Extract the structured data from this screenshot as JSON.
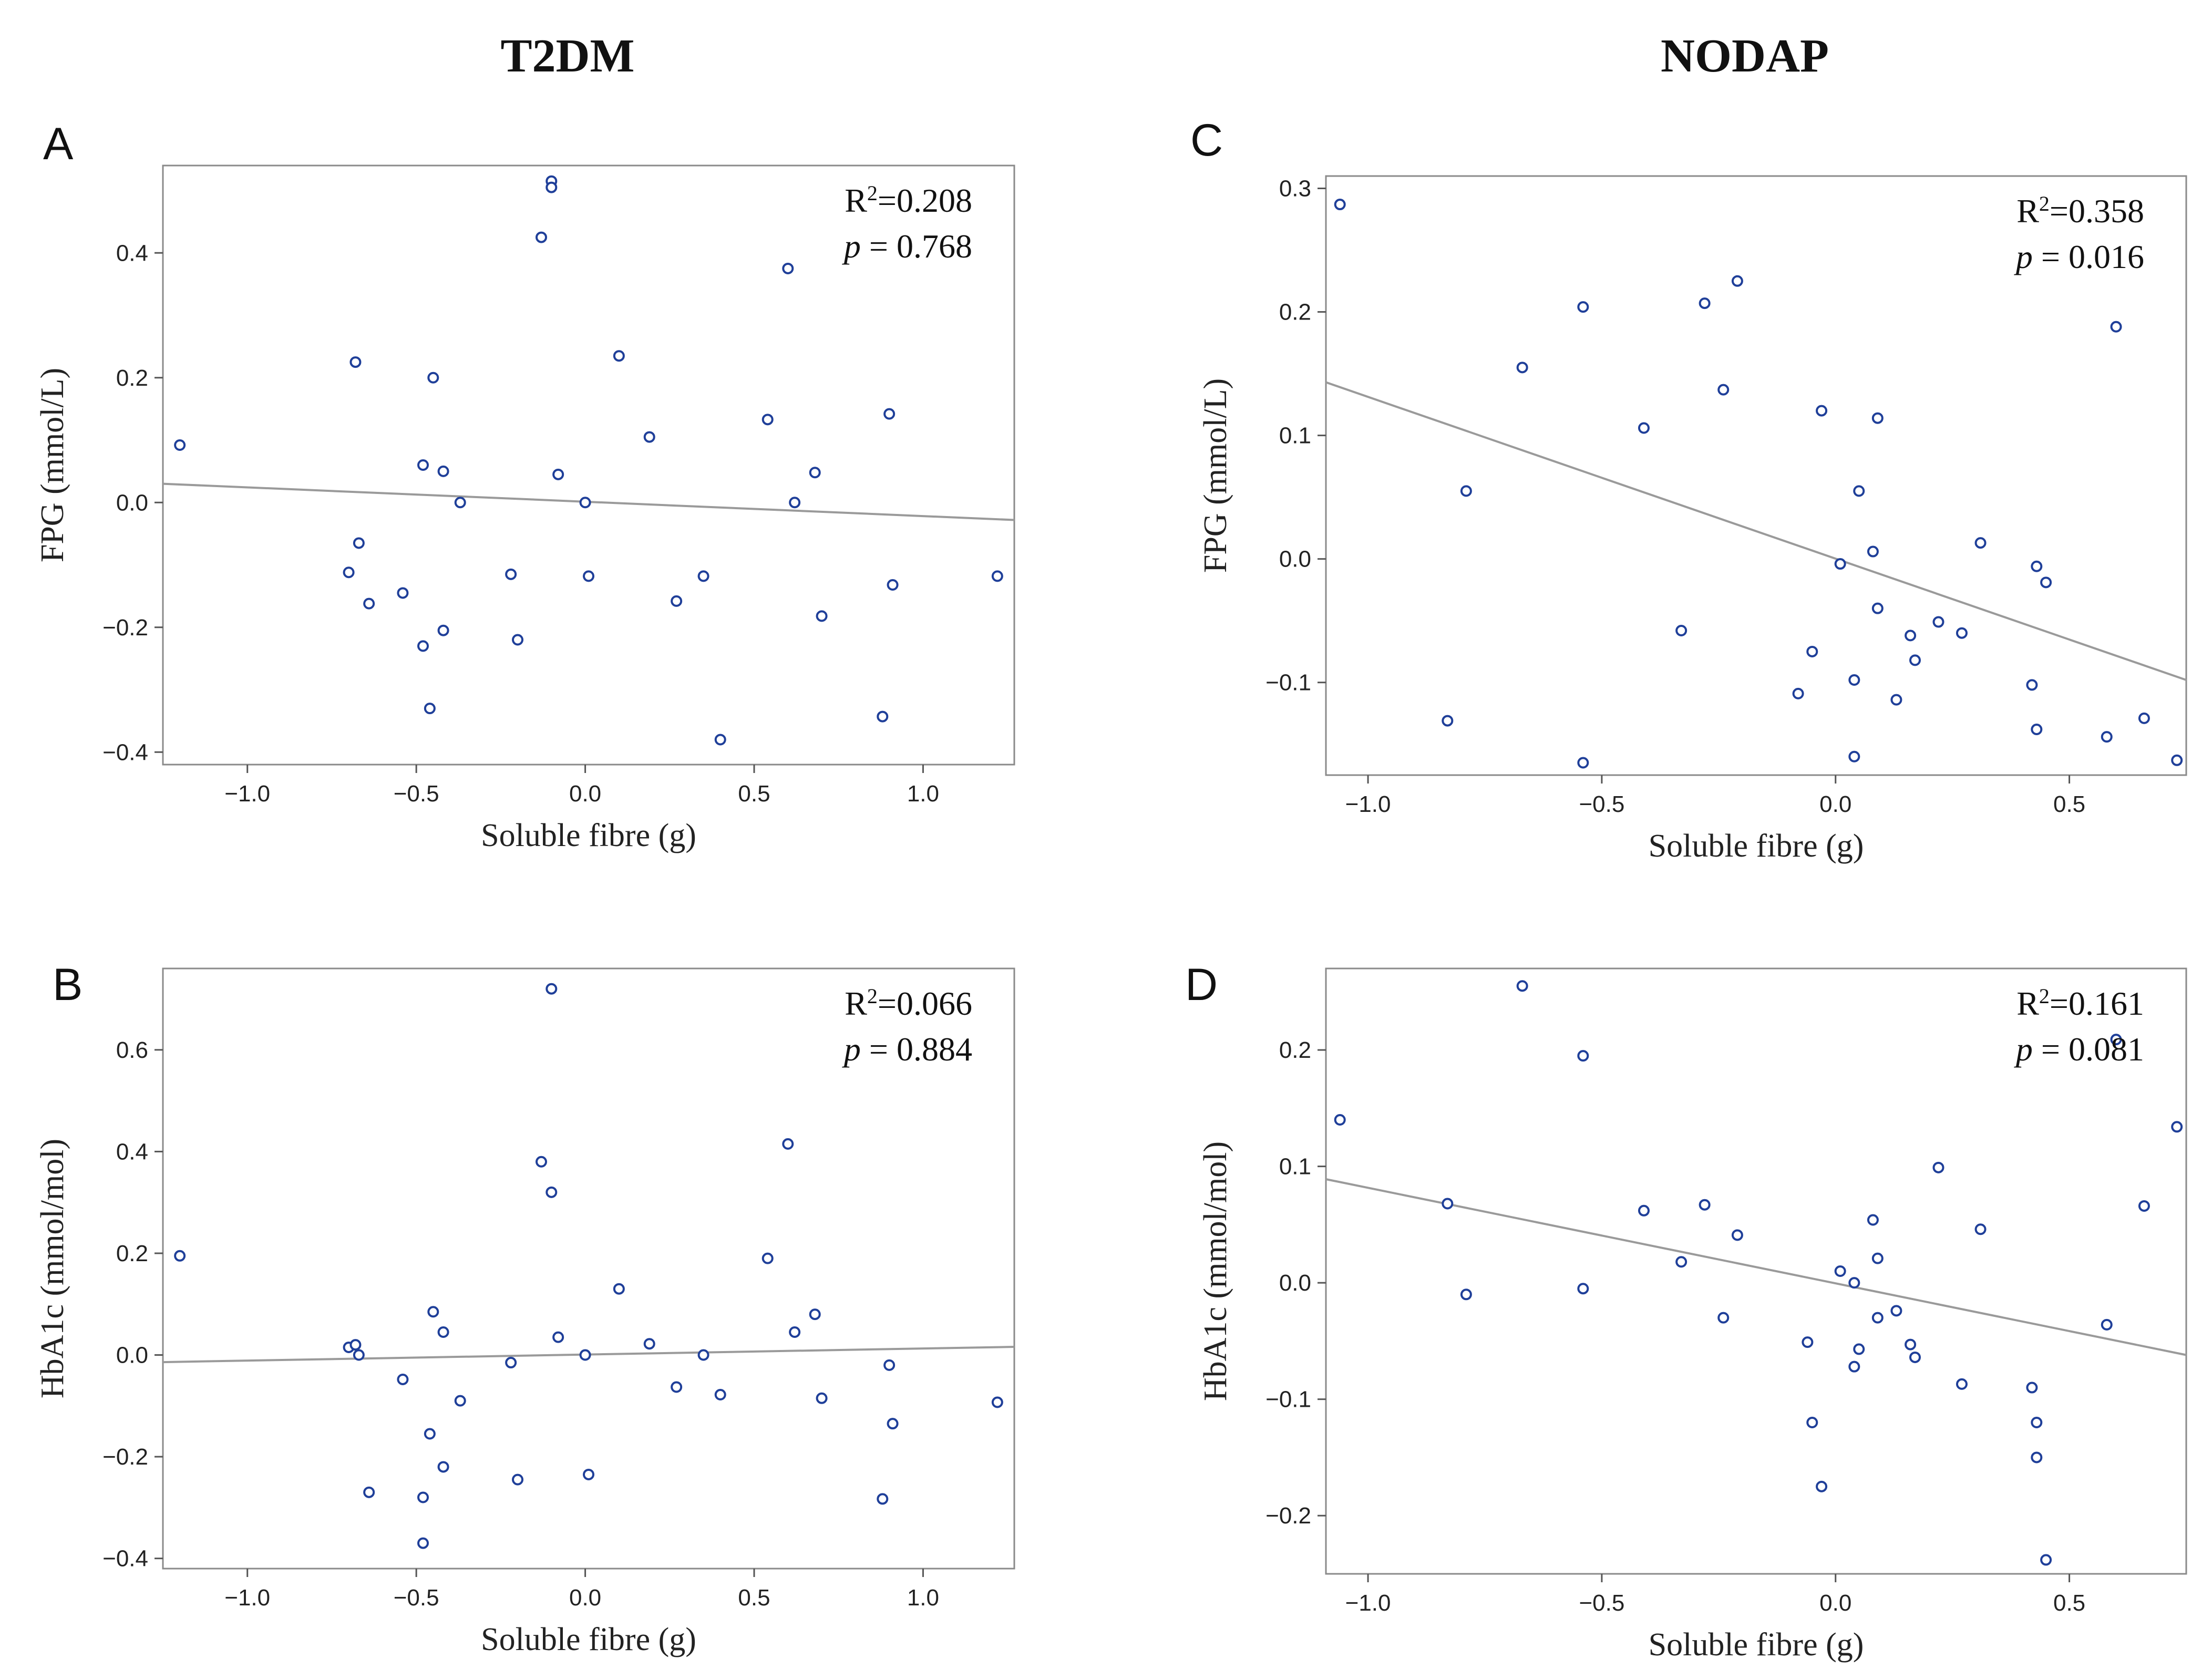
{
  "column_titles": [
    "T2DM",
    "NODAP"
  ],
  "chart_data": [
    {
      "panel": "A",
      "type": "scatter",
      "xlabel": "Soluble fibre (g)",
      "ylabel": "FPG (mmol/L)",
      "xlim": [
        -1.25,
        1.27
      ],
      "ylim": [
        -0.42,
        0.54
      ],
      "xticks": [
        -1.0,
        -0.5,
        0.0,
        0.5,
        1.0
      ],
      "yticks": [
        -0.4,
        -0.2,
        0.0,
        0.2,
        0.4
      ],
      "r2_label": "R",
      "r2_sup": "2",
      "r2_value": "=0.208",
      "p_label": "p",
      "p_value": " = 0.768",
      "fit_line": {
        "x": [
          -1.25,
          1.27
        ],
        "y": [
          0.03,
          -0.028
        ]
      },
      "points": {
        "x": [
          -1.2,
          -0.7,
          -0.68,
          -0.67,
          -0.64,
          -0.54,
          -0.48,
          -0.48,
          -0.46,
          -0.45,
          -0.42,
          -0.42,
          -0.37,
          -0.22,
          -0.2,
          -0.13,
          -0.1,
          -0.1,
          -0.08,
          0.0,
          0.01,
          0.1,
          0.19,
          0.27,
          0.35,
          0.4,
          0.54,
          0.6,
          0.62,
          0.68,
          0.7,
          0.88,
          0.9,
          0.91,
          1.22
        ],
        "y": [
          0.092,
          -0.112,
          0.225,
          -0.065,
          -0.162,
          -0.145,
          0.06,
          -0.23,
          -0.33,
          0.2,
          0.05,
          -0.205,
          0.0,
          -0.115,
          -0.22,
          0.425,
          0.515,
          0.505,
          0.045,
          0.0,
          -0.118,
          0.235,
          0.105,
          -0.158,
          -0.118,
          -0.38,
          0.133,
          0.375,
          0.0,
          0.048,
          -0.182,
          -0.343,
          0.142,
          -0.132,
          -0.118
        ]
      }
    },
    {
      "panel": "B",
      "type": "scatter",
      "xlabel": "Soluble fibre (g)",
      "ylabel": "HbA1c (mmol/mol)",
      "xlim": [
        -1.25,
        1.27
      ],
      "ylim": [
        -0.42,
        0.76
      ],
      "xticks": [
        -1.0,
        -0.5,
        0.0,
        0.5,
        1.0
      ],
      "yticks": [
        -0.4,
        -0.2,
        0.0,
        0.2,
        0.4,
        0.6
      ],
      "r2_label": "R",
      "r2_sup": "2",
      "r2_value": "=0.066",
      "p_label": "p",
      "p_value": " = 0.884",
      "fit_line": {
        "x": [
          -1.25,
          1.27
        ],
        "y": [
          -0.014,
          0.016
        ]
      },
      "points": {
        "x": [
          -1.2,
          -0.7,
          -0.68,
          -0.67,
          -0.64,
          -0.54,
          -0.48,
          -0.48,
          -0.46,
          -0.45,
          -0.42,
          -0.42,
          -0.37,
          -0.22,
          -0.2,
          -0.13,
          -0.1,
          -0.1,
          -0.08,
          0.0,
          0.01,
          0.1,
          0.19,
          0.27,
          0.35,
          0.4,
          0.54,
          0.6,
          0.62,
          0.68,
          0.7,
          0.88,
          0.9,
          0.91,
          1.22
        ],
        "y": [
          0.195,
          0.015,
          0.02,
          0.0,
          -0.27,
          -0.048,
          -0.28,
          -0.37,
          -0.155,
          0.085,
          0.045,
          -0.22,
          -0.09,
          -0.015,
          -0.245,
          0.38,
          0.72,
          0.32,
          0.035,
          0.0,
          -0.235,
          0.13,
          0.022,
          -0.063,
          0.0,
          -0.078,
          0.19,
          0.415,
          0.045,
          0.08,
          -0.085,
          -0.283,
          -0.02,
          -0.135,
          -0.093
        ]
      }
    },
    {
      "panel": "C",
      "type": "scatter",
      "xlabel": "Soluble fibre (g)",
      "ylabel": "FPG (mmol/L)",
      "xlim": [
        -1.09,
        0.75
      ],
      "ylim": [
        -0.175,
        0.31
      ],
      "xticks": [
        -1.0,
        -0.5,
        0.0,
        0.5
      ],
      "yticks": [
        -0.1,
        0.0,
        0.1,
        0.2,
        0.3
      ],
      "r2_label": "R",
      "r2_sup": "2",
      "r2_value": "=0.358",
      "p_label": "p",
      "p_value": " = 0.016",
      "fit_line": {
        "x": [
          -1.09,
          0.75
        ],
        "y": [
          0.143,
          -0.098
        ]
      },
      "points": {
        "x": [
          -1.06,
          -0.83,
          -0.79,
          -0.67,
          -0.54,
          -0.54,
          -0.41,
          -0.33,
          -0.28,
          -0.24,
          -0.21,
          -0.08,
          -0.05,
          -0.03,
          0.01,
          0.04,
          0.04,
          0.05,
          0.08,
          0.09,
          0.09,
          0.13,
          0.16,
          0.17,
          0.22,
          0.27,
          0.31,
          0.42,
          0.43,
          0.43,
          0.45,
          0.58,
          0.6,
          0.66,
          0.73
        ],
        "y": [
          0.287,
          -0.131,
          0.055,
          0.155,
          0.204,
          -0.165,
          0.106,
          -0.058,
          0.207,
          0.137,
          0.225,
          -0.109,
          -0.075,
          0.12,
          -0.004,
          -0.098,
          -0.16,
          0.055,
          0.006,
          0.114,
          -0.04,
          -0.114,
          -0.062,
          -0.082,
          -0.051,
          -0.06,
          0.013,
          -0.102,
          -0.138,
          -0.006,
          -0.019,
          -0.144,
          0.188,
          -0.129,
          -0.163
        ]
      }
    },
    {
      "panel": "D",
      "type": "scatter",
      "xlabel": "Soluble fibre (g)",
      "ylabel": "HbA1c (mmol/mol)",
      "xlim": [
        -1.09,
        0.75
      ],
      "ylim": [
        -0.25,
        0.27
      ],
      "xticks": [
        -1.0,
        -0.5,
        0.0,
        0.5
      ],
      "yticks": [
        -0.2,
        -0.1,
        0.0,
        0.1,
        0.2
      ],
      "r2_label": "R",
      "r2_sup": "2",
      "r2_value": "=0.161",
      "p_label": "p",
      "p_value": " = 0.081",
      "fit_line": {
        "x": [
          -1.09,
          0.75
        ],
        "y": [
          0.089,
          -0.062
        ]
      },
      "points": {
        "x": [
          -1.06,
          -0.83,
          -0.79,
          -0.67,
          -0.54,
          -0.54,
          -0.41,
          -0.33,
          -0.28,
          -0.24,
          -0.21,
          -0.06,
          -0.05,
          -0.03,
          0.01,
          0.04,
          0.04,
          0.05,
          0.08,
          0.09,
          0.09,
          0.13,
          0.16,
          0.17,
          0.22,
          0.27,
          0.31,
          0.42,
          0.43,
          0.43,
          0.45,
          0.58,
          0.6,
          0.66,
          0.73
        ],
        "y": [
          0.14,
          0.068,
          -0.01,
          0.255,
          0.195,
          -0.005,
          0.062,
          0.018,
          0.067,
          -0.03,
          0.041,
          -0.051,
          -0.12,
          -0.175,
          0.01,
          -0.072,
          0.0,
          -0.057,
          0.054,
          0.021,
          -0.03,
          -0.024,
          -0.053,
          -0.064,
          0.099,
          -0.087,
          0.046,
          -0.09,
          -0.15,
          -0.12,
          -0.238,
          -0.036,
          0.209,
          0.066,
          0.134
        ]
      }
    }
  ]
}
